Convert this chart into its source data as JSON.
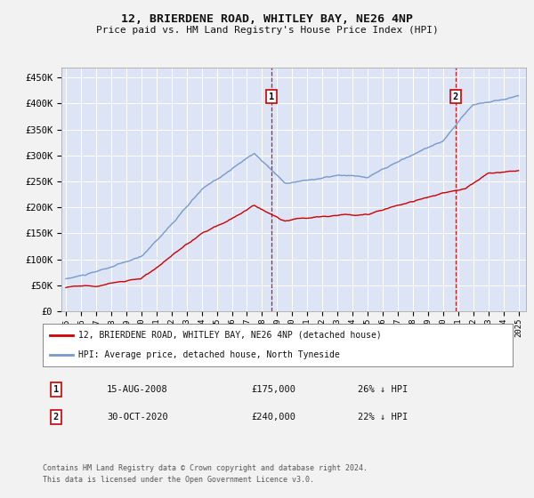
{
  "title": "12, BRIERDENE ROAD, WHITLEY BAY, NE26 4NP",
  "subtitle": "Price paid vs. HM Land Registry's House Price Index (HPI)",
  "ylabel_ticks": [
    "£0",
    "£50K",
    "£100K",
    "£150K",
    "£200K",
    "£250K",
    "£300K",
    "£350K",
    "£400K",
    "£450K"
  ],
  "ytick_values": [
    0,
    50000,
    100000,
    150000,
    200000,
    250000,
    300000,
    350000,
    400000,
    450000
  ],
  "ylim": [
    0,
    470000
  ],
  "xlim_start": 1994.7,
  "xlim_end": 2025.5,
  "background_color": "#dce4f5",
  "fig_bg_color": "#f0f0f0",
  "grid_color": "#ffffff",
  "line1_color": "#cc0000",
  "line2_color": "#7799cc",
  "marker1_x": 2008.62,
  "marker1_y": 175000,
  "marker2_x": 2020.83,
  "marker2_y": 240000,
  "legend_line1": "12, BRIERDENE ROAD, WHITLEY BAY, NE26 4NP (detached house)",
  "legend_line2": "HPI: Average price, detached house, North Tyneside",
  "ann1_label": "1",
  "ann2_label": "2",
  "ann1_date": "15-AUG-2008",
  "ann1_price": "£175,000",
  "ann1_hpi": "26% ↓ HPI",
  "ann2_date": "30-OCT-2020",
  "ann2_price": "£240,000",
  "ann2_hpi": "22% ↓ HPI",
  "footer": "Contains HM Land Registry data © Crown copyright and database right 2024.\nThis data is licensed under the Open Government Licence v3.0.",
  "xtick_years": [
    1995,
    1996,
    1997,
    1998,
    1999,
    2000,
    2001,
    2002,
    2003,
    2004,
    2005,
    2006,
    2007,
    2008,
    2009,
    2010,
    2011,
    2012,
    2013,
    2014,
    2015,
    2016,
    2017,
    2018,
    2019,
    2020,
    2021,
    2022,
    2023,
    2024,
    2025
  ]
}
